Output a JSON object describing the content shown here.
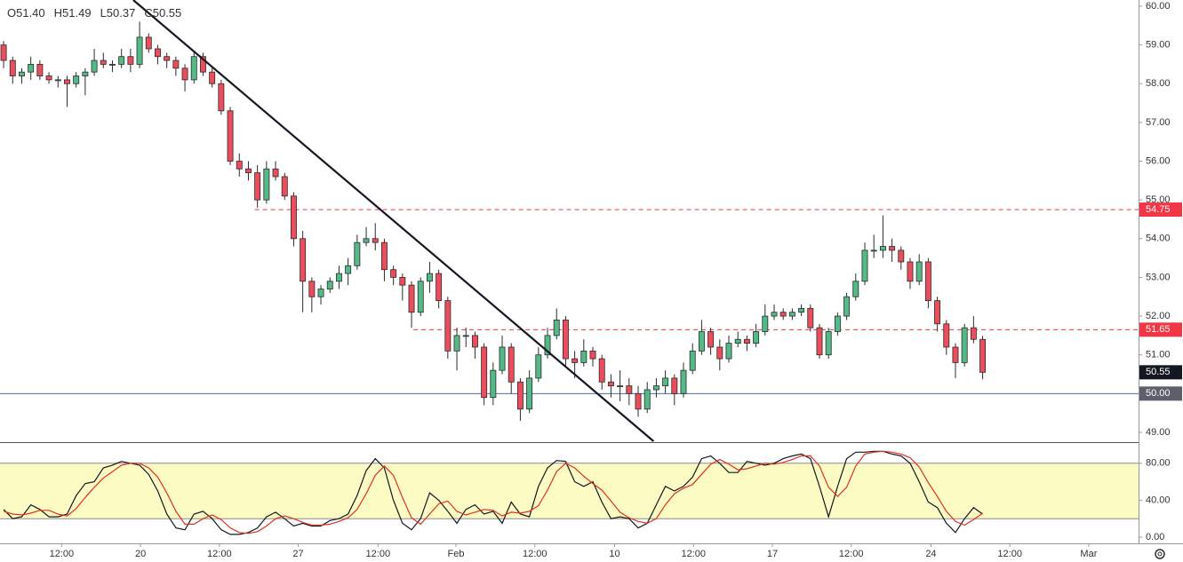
{
  "chart_data": {
    "type": "candlestick",
    "ohlc_labels": [
      "O51.40",
      "H51.49",
      "L50.37",
      "C50.55"
    ],
    "up_color": "#53b987",
    "down_color": "#eb4d5c",
    "border_color": "#2b2b2b",
    "xlim": [
      -0.4,
      125.2
    ],
    "ylim": [
      48.77,
      60.16
    ],
    "yticks": [
      {
        "value": 60,
        "label": "60.00"
      },
      {
        "value": 59,
        "label": "59.00"
      },
      {
        "value": 58,
        "label": "58.00"
      },
      {
        "value": 57,
        "label": "57.00"
      },
      {
        "value": 56,
        "label": "56.00"
      },
      {
        "value": 55,
        "label": "55.00"
      },
      {
        "value": 54,
        "label": "54.00"
      },
      {
        "value": 53,
        "label": "53.00"
      },
      {
        "value": 52,
        "label": "52.00"
      },
      {
        "value": 51,
        "label": "51.00"
      },
      {
        "value": 50,
        "label": "50.00"
      },
      {
        "value": 49,
        "label": "49.00"
      }
    ],
    "xticks": [
      {
        "value": 6.4,
        "label": "12:00"
      },
      {
        "value": 15.1,
        "label": "20"
      },
      {
        "value": 23.8,
        "label": "12:00"
      },
      {
        "value": 32.5,
        "label": "27"
      },
      {
        "value": 41.3,
        "label": "12:00"
      },
      {
        "value": 49.9,
        "label": "Feb"
      },
      {
        "value": 58.6,
        "label": "12:00"
      },
      {
        "value": 67.4,
        "label": "10"
      },
      {
        "value": 76.1,
        "label": "12:00"
      },
      {
        "value": 84.8,
        "label": "17"
      },
      {
        "value": 93.5,
        "label": "12:00"
      },
      {
        "value": 102.3,
        "label": "24"
      },
      {
        "value": 111.0,
        "label": "12:00"
      },
      {
        "value": 119.7,
        "label": "Mar"
      }
    ],
    "candles": [
      [
        59.0,
        59.1,
        58.4,
        58.6
      ],
      [
        58.6,
        58.7,
        58.0,
        58.2
      ],
      [
        58.2,
        58.4,
        58.0,
        58.3
      ],
      [
        58.3,
        58.7,
        58.1,
        58.5
      ],
      [
        58.5,
        58.6,
        58.1,
        58.2
      ],
      [
        58.2,
        58.3,
        58.0,
        58.1
      ],
      [
        58.1,
        58.2,
        57.9,
        58.1
      ],
      [
        58.1,
        58.2,
        57.4,
        58.0
      ],
      [
        58.0,
        58.3,
        57.9,
        58.2
      ],
      [
        58.2,
        58.4,
        57.7,
        58.3
      ],
      [
        58.3,
        58.9,
        58.2,
        58.6
      ],
      [
        58.6,
        58.8,
        58.4,
        58.5
      ],
      [
        58.5,
        58.6,
        58.3,
        58.5
      ],
      [
        58.5,
        58.9,
        58.4,
        58.7
      ],
      [
        58.7,
        58.9,
        58.3,
        58.5
      ],
      [
        58.5,
        59.6,
        58.4,
        59.2
      ],
      [
        59.2,
        59.3,
        58.8,
        58.9
      ],
      [
        58.9,
        59.0,
        58.5,
        58.7
      ],
      [
        58.7,
        58.8,
        58.4,
        58.6
      ],
      [
        58.6,
        58.7,
        58.2,
        58.4
      ],
      [
        58.4,
        58.5,
        57.8,
        58.1
      ],
      [
        58.1,
        58.8,
        58.0,
        58.7
      ],
      [
        58.7,
        58.8,
        58.2,
        58.3
      ],
      [
        58.3,
        58.4,
        57.9,
        58.0
      ],
      [
        58.0,
        58.1,
        57.2,
        57.3
      ],
      [
        57.3,
        57.4,
        55.9,
        56.0
      ],
      [
        56.0,
        56.2,
        55.6,
        55.8
      ],
      [
        55.8,
        56.0,
        55.5,
        55.7
      ],
      [
        55.7,
        55.9,
        54.8,
        55.0
      ],
      [
        55.0,
        56.0,
        54.9,
        55.8
      ],
      [
        55.8,
        56.0,
        55.5,
        55.6
      ],
      [
        55.6,
        55.7,
        55.0,
        55.1
      ],
      [
        55.1,
        55.2,
        53.8,
        54.0
      ],
      [
        54.0,
        54.2,
        52.1,
        52.9
      ],
      [
        52.9,
        53.0,
        52.1,
        52.5
      ],
      [
        52.5,
        52.8,
        52.3,
        52.7
      ],
      [
        52.7,
        53.0,
        52.6,
        52.9
      ],
      [
        52.9,
        53.3,
        52.7,
        53.1
      ],
      [
        53.1,
        53.5,
        52.8,
        53.3
      ],
      [
        53.3,
        54.1,
        53.2,
        53.9
      ],
      [
        53.9,
        54.3,
        53.8,
        54.0
      ],
      [
        54.0,
        54.4,
        53.7,
        53.9
      ],
      [
        53.9,
        54.0,
        52.9,
        53.2
      ],
      [
        53.2,
        53.3,
        52.8,
        53.0
      ],
      [
        53.0,
        53.1,
        52.4,
        52.8
      ],
      [
        52.8,
        52.9,
        51.7,
        52.1
      ],
      [
        52.1,
        53.0,
        52.0,
        52.9
      ],
      [
        52.9,
        53.4,
        52.6,
        53.1
      ],
      [
        53.1,
        53.2,
        52.2,
        52.4
      ],
      [
        52.4,
        52.5,
        50.9,
        51.1
      ],
      [
        51.1,
        51.7,
        50.6,
        51.5
      ],
      [
        51.5,
        51.7,
        51.2,
        51.5
      ],
      [
        51.5,
        51.6,
        50.9,
        51.2
      ],
      [
        51.2,
        51.3,
        49.7,
        49.9
      ],
      [
        49.9,
        50.8,
        49.7,
        50.6
      ],
      [
        50.6,
        51.5,
        50.5,
        51.2
      ],
      [
        51.2,
        51.3,
        50.0,
        50.3
      ],
      [
        50.3,
        50.4,
        49.3,
        49.6
      ],
      [
        49.6,
        50.6,
        49.5,
        50.4
      ],
      [
        50.4,
        51.2,
        50.3,
        51.0
      ],
      [
        51.0,
        51.7,
        50.9,
        51.5
      ],
      [
        51.5,
        52.2,
        51.4,
        51.9
      ],
      [
        51.9,
        52.0,
        50.7,
        50.9
      ],
      [
        50.9,
        51.1,
        50.4,
        50.8
      ],
      [
        50.8,
        51.4,
        50.7,
        51.1
      ],
      [
        51.1,
        51.2,
        50.7,
        50.9
      ],
      [
        50.9,
        51.0,
        50.1,
        50.3
      ],
      [
        50.3,
        50.5,
        49.9,
        50.2
      ],
      [
        50.2,
        50.6,
        49.8,
        50.2
      ],
      [
        50.2,
        50.4,
        49.7,
        50.0
      ],
      [
        50.0,
        50.2,
        49.4,
        49.6
      ],
      [
        49.6,
        50.3,
        49.5,
        50.1
      ],
      [
        50.1,
        50.4,
        49.9,
        50.2
      ],
      [
        50.2,
        50.6,
        50.0,
        50.4
      ],
      [
        50.4,
        50.5,
        49.7,
        50.0
      ],
      [
        50.0,
        50.8,
        49.9,
        50.6
      ],
      [
        50.6,
        51.3,
        50.5,
        51.1
      ],
      [
        51.1,
        51.9,
        51.0,
        51.6
      ],
      [
        51.6,
        51.7,
        51.0,
        51.2
      ],
      [
        51.2,
        51.4,
        50.6,
        50.9
      ],
      [
        50.9,
        51.5,
        50.8,
        51.3
      ],
      [
        51.3,
        51.6,
        51.2,
        51.4
      ],
      [
        51.4,
        51.5,
        51.1,
        51.3
      ],
      [
        51.3,
        51.8,
        51.2,
        51.6
      ],
      [
        51.6,
        52.3,
        51.5,
        52.0
      ],
      [
        52.0,
        52.3,
        51.9,
        52.1
      ],
      [
        52.1,
        52.2,
        51.9,
        52.0
      ],
      [
        52.0,
        52.2,
        51.9,
        52.1
      ],
      [
        52.1,
        52.3,
        52.0,
        52.2
      ],
      [
        52.2,
        52.3,
        51.6,
        51.7
      ],
      [
        51.7,
        51.8,
        50.9,
        51.0
      ],
      [
        51.0,
        51.7,
        50.9,
        51.6
      ],
      [
        51.6,
        52.1,
        51.5,
        52.0
      ],
      [
        52.0,
        52.6,
        51.9,
        52.5
      ],
      [
        52.5,
        53.1,
        52.4,
        52.9
      ],
      [
        52.9,
        53.9,
        52.8,
        53.7
      ],
      [
        53.7,
        54.1,
        53.5,
        53.7
      ],
      [
        53.7,
        54.6,
        53.5,
        53.8
      ],
      [
        53.8,
        54.0,
        53.4,
        53.7
      ],
      [
        53.7,
        53.8,
        53.2,
        53.4
      ],
      [
        53.4,
        53.5,
        52.7,
        52.9
      ],
      [
        52.9,
        53.6,
        52.8,
        53.4
      ],
      [
        53.4,
        53.5,
        52.2,
        52.4
      ],
      [
        52.4,
        52.5,
        51.6,
        51.8
      ],
      [
        51.8,
        51.9,
        51.0,
        51.2
      ],
      [
        51.2,
        51.3,
        50.4,
        50.8
      ],
      [
        50.8,
        51.8,
        50.7,
        51.7
      ],
      [
        51.7,
        52.0,
        51.3,
        51.4
      ],
      [
        51.4,
        51.49,
        50.37,
        50.55
      ]
    ],
    "trendline": {
      "x": [
        14.3,
        71.7
      ],
      "y": [
        60.16,
        48.77
      ],
      "color": "#131722"
    },
    "horizontal_lines": [
      {
        "value": 54.75,
        "label": "54.75",
        "start": 27.7,
        "color": "#f23645",
        "style": "dashed"
      },
      {
        "value": 51.65,
        "label": "51.65",
        "start": 45.2,
        "color": "#f23645",
        "style": "dashed"
      },
      {
        "value": 50,
        "label": "50.00",
        "color": "#4a6fa5",
        "badge_color": "#5d606b",
        "style": "solid"
      }
    ],
    "last_price": {
      "value": 50.55,
      "label": "50.55",
      "color": "#131722"
    },
    "stochastic": {
      "ylim": [
        0,
        100
      ],
      "band": [
        20,
        80
      ],
      "band_color": "#fdfbc4",
      "yticks": [
        {
          "value": 80,
          "label": "80.00"
        },
        {
          "value": 40,
          "label": "40.00"
        },
        {
          "value": 0,
          "label": "0.00"
        }
      ],
      "series": [
        {
          "color": "#131722",
          "values": [
            30,
            20,
            22,
            35,
            30,
            22,
            22,
            25,
            45,
            58,
            60,
            75,
            78,
            82,
            80,
            78,
            68,
            50,
            25,
            10,
            8,
            25,
            28,
            20,
            8,
            3,
            3,
            5,
            10,
            22,
            27,
            20,
            12,
            15,
            12,
            12,
            18,
            20,
            25,
            45,
            72,
            85,
            75,
            40,
            15,
            8,
            20,
            48,
            40,
            28,
            15,
            30,
            35,
            25,
            28,
            15,
            38,
            25,
            22,
            55,
            75,
            83,
            82,
            60,
            55,
            60,
            38,
            20,
            22,
            20,
            10,
            15,
            35,
            55,
            50,
            55,
            65,
            85,
            88,
            80,
            70,
            70,
            82,
            80,
            78,
            80,
            85,
            88,
            90,
            85,
            55,
            22,
            55,
            85,
            92,
            92,
            93,
            93,
            90,
            88,
            80,
            60,
            38,
            32,
            15,
            5,
            20,
            32,
            25
          ]
        },
        {
          "color": "#e0301e",
          "values": [
            28,
            25,
            24,
            26,
            29,
            29,
            25,
            23,
            31,
            43,
            54,
            64,
            71,
            78,
            80,
            80,
            75,
            65,
            48,
            28,
            14,
            14,
            20,
            24,
            19,
            10,
            5,
            4,
            6,
            12,
            20,
            23,
            20,
            16,
            13,
            13,
            14,
            17,
            21,
            30,
            47,
            67,
            77,
            67,
            43,
            21,
            14,
            25,
            36,
            39,
            28,
            24,
            27,
            30,
            29,
            23,
            27,
            26,
            28,
            34,
            51,
            71,
            80,
            75,
            66,
            58,
            51,
            39,
            27,
            21,
            17,
            15,
            20,
            35,
            47,
            53,
            57,
            68,
            79,
            84,
            79,
            73,
            74,
            77,
            80,
            79,
            81,
            84,
            88,
            88,
            77,
            54,
            44,
            54,
            77,
            90,
            92,
            93,
            92,
            90,
            86,
            76,
            59,
            44,
            28,
            17,
            13,
            19,
            26
          ]
        }
      ]
    }
  }
}
